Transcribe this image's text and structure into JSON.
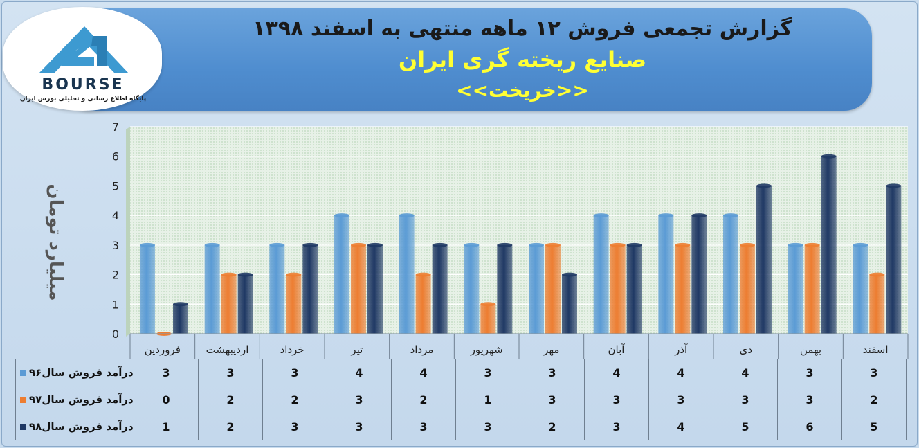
{
  "header": {
    "title_line1": "گزارش تجمعی فروش  ۱۲ ماهه منتهی به اسفند ۱۳۹۸",
    "title_line2": "صنایع ریخته گری ایران",
    "title_line3": "<<خریخت>>"
  },
  "logo": {
    "brand": "BOURSE",
    "subtitle": "پایگاه اطلاع رسانی و تحلیلی بورس ایران"
  },
  "colors": {
    "s96": "#5b9bd5",
    "s97": "#ed7d31",
    "s98": "#1f3864",
    "plot_bg": "#e7f1e7",
    "grid": "#ffffff"
  },
  "chart_data": {
    "type": "bar",
    "ylabel": "میلیارد تومان",
    "ylim": [
      0,
      7
    ],
    "yticks": [
      0,
      1,
      2,
      3,
      4,
      5,
      6,
      7
    ],
    "categories": [
      "فروردین",
      "اردیبهشت",
      "خرداد",
      "تیر",
      "مرداد",
      "شهریور",
      "مهر",
      "آبان",
      "آذر",
      "دی",
      "بهمن",
      "اسفند"
    ],
    "series": [
      {
        "name": "درآمد فروش سال۹۶",
        "values": [
          3,
          3,
          3,
          4,
          4,
          3,
          3,
          4,
          4,
          4,
          3,
          3
        ]
      },
      {
        "name": "درآمد فروش سال۹۷",
        "values": [
          0,
          2,
          2,
          3,
          2,
          1,
          3,
          3,
          3,
          3,
          3,
          2
        ]
      },
      {
        "name": "درآمد فروش سال۹۸",
        "values": [
          1,
          2,
          3,
          3,
          3,
          3,
          2,
          3,
          4,
          5,
          6,
          5
        ]
      }
    ],
    "legend": "table-below"
  }
}
